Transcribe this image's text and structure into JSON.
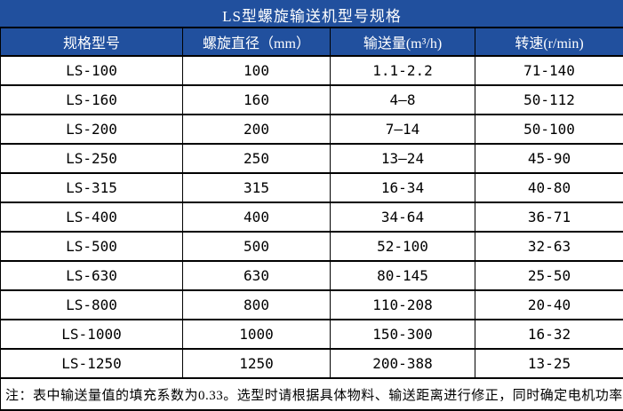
{
  "title": "LS型螺旋输送机型号规格",
  "table": {
    "headers": [
      "规格型号",
      "螺旋直径（mm）",
      "输送量(m³/h)",
      "转速(r/min)"
    ],
    "rows": [
      [
        "LS-100",
        "100",
        "1.1-2.2",
        "71-140"
      ],
      [
        "LS-160",
        "160",
        "4—8",
        "50-112"
      ],
      [
        "LS-200",
        "200",
        "7—14",
        "50-100"
      ],
      [
        "LS-250",
        "250",
        "13—24",
        "45-90"
      ],
      [
        "LS-315",
        "315",
        "16-34",
        "40-80"
      ],
      [
        "LS-400",
        "400",
        "34-64",
        "36-71"
      ],
      [
        "LS-500",
        "500",
        "52-100",
        "32-63"
      ],
      [
        "LS-630",
        "630",
        "80-145",
        "25-50"
      ],
      [
        "LS-800",
        "800",
        "110-208",
        "20-40"
      ],
      [
        "LS-1000",
        "1000",
        "150-300",
        "16-32"
      ],
      [
        "LS-1250",
        "1250",
        "200-388",
        "13-25"
      ]
    ]
  },
  "note": "注：表中输送量值的填充系数为0.33。选型时请根据具体物料、输送距离进行修正，同时确定电机功率",
  "colors": {
    "header_bg": "#21509E",
    "header_text": "#FFFFFF",
    "body_bg": "#FFFFFF",
    "body_text": "#000000",
    "border": "#000000"
  }
}
